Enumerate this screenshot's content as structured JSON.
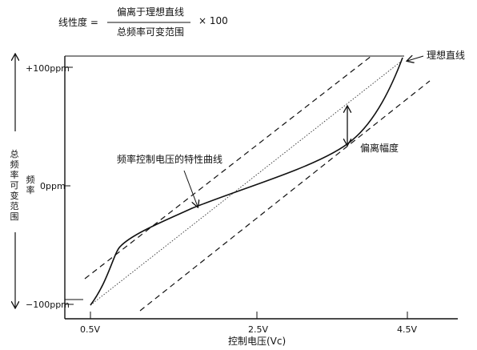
{
  "formula": {
    "lhs": "线性度 =",
    "numerator": "偏离于理想直线",
    "denominator": "总频率可变范围",
    "multiplier": "× 100"
  },
  "axes": {
    "y_axis_label": "频率",
    "x_axis_label": "控制电压(Vc)",
    "total_range_label": "总频率可变范围",
    "y_ticks": [
      "+100ppm",
      "0ppm",
      "−100ppm"
    ],
    "x_ticks": [
      "0.5V",
      "2.5V",
      "4.5V"
    ]
  },
  "annotations": {
    "ideal_line": "理想直线",
    "deviation": "偏离幅度",
    "curve": "频率控制电压的特性曲线"
  },
  "colors": {
    "ink": "#111111",
    "background": "#ffffff"
  }
}
